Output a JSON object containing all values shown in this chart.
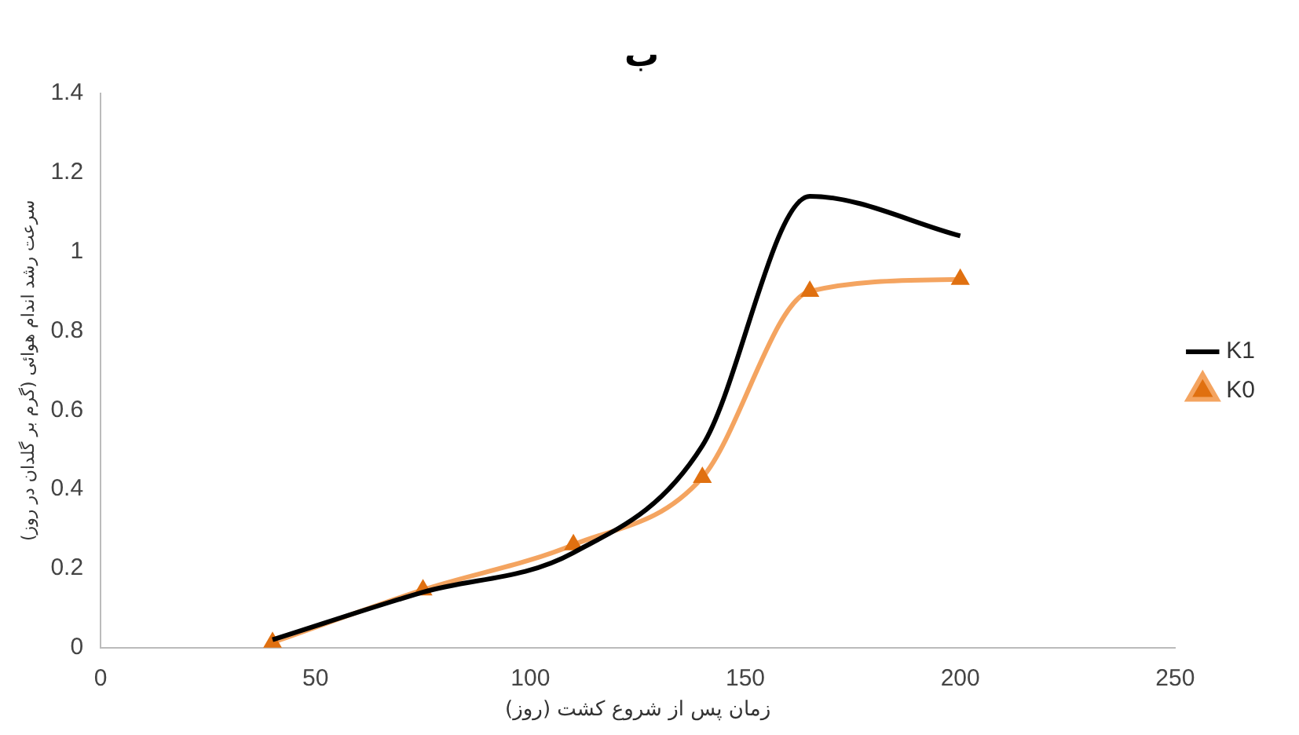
{
  "chart_data": {
    "type": "line",
    "title": "ب",
    "xlabel": "زمان پس از شروع کشت (روز)",
    "ylabel": "سرعت رشد اندام هوائی (گرم بر گلدان در روز)",
    "x": [
      40,
      75,
      110,
      140,
      165,
      200
    ],
    "series": [
      {
        "name": "K1",
        "color": "#000000",
        "marker": "none",
        "values": [
          0.02,
          0.14,
          0.24,
          0.51,
          1.14,
          1.04
        ]
      },
      {
        "name": "K0",
        "color": "#f4a460",
        "marker": "triangle",
        "values": [
          0.013,
          0.146,
          0.26,
          0.43,
          0.9,
          0.93
        ]
      }
    ],
    "xlim": [
      0,
      250
    ],
    "xticks": [
      0,
      50,
      100,
      150,
      200,
      250
    ],
    "ylim": [
      0,
      1.4
    ],
    "yticks": [
      0,
      0.2,
      0.4,
      0.6,
      0.8,
      1,
      1.2,
      1.4
    ],
    "grid": false,
    "legend": "right"
  }
}
